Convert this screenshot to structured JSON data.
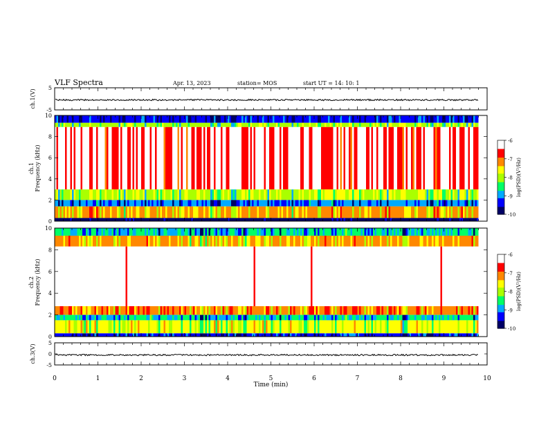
{
  "header": {
    "title": "VLF Spectra",
    "date": "Apr. 13, 2023",
    "station": "station= MOS",
    "start": "start  UT =   14: 10: 1"
  },
  "chart_data": [
    {
      "type": "line",
      "name": "ch.1 waveform",
      "ylabel": "ch.1(V)",
      "ylim": [
        -5,
        5
      ],
      "yticks": [
        "5",
        "-5"
      ],
      "x": [
        0,
        9.8
      ],
      "level": -0.5
    },
    {
      "type": "heatmap",
      "name": "ch.1 spectrogram",
      "ylabel": "ch.1\nFrequency (kHz)",
      "ylim": [
        0,
        10
      ],
      "yticks": [
        "0",
        "2",
        "4",
        "6",
        "8",
        "10"
      ],
      "xlim": [
        0,
        9.8
      ],
      "bands": [
        {
          "from": 9.3,
          "to": 10,
          "level": -9.3
        },
        {
          "from": 8.9,
          "to": 9.3,
          "level": -7.9
        },
        {
          "from": 3.0,
          "to": 8.9,
          "level": -6.5
        },
        {
          "from": 2.0,
          "to": 3.0,
          "level": -7.8
        },
        {
          "from": 1.4,
          "to": 2.0,
          "level": -9.0
        },
        {
          "from": 0.3,
          "to": 1.4,
          "level": -7.2
        },
        {
          "from": 0.0,
          "to": 0.3,
          "level": -9.8
        }
      ],
      "colorbar": {
        "label": "log(PSD)(V²/Hz)",
        "range": [
          -10,
          -6
        ],
        "ticks": [
          "-6",
          "-7",
          "-8",
          "-9",
          "-10"
        ]
      }
    },
    {
      "type": "heatmap",
      "name": "ch.2 spectrogram",
      "ylabel": "ch.2\nFrequency (kHz)",
      "ylim": [
        0,
        10
      ],
      "yticks": [
        "0",
        "2",
        "4",
        "6",
        "8",
        "10"
      ],
      "xlim": [
        0,
        9.8
      ],
      "bands": [
        {
          "from": 9.3,
          "to": 10,
          "level": -8.6
        },
        {
          "from": 8.3,
          "to": 9.3,
          "level": -7.2
        },
        {
          "from": 2.8,
          "to": 8.3,
          "level": -6.0
        },
        {
          "from": 2.0,
          "to": 2.8,
          "level": -7.0
        },
        {
          "from": 1.5,
          "to": 2.0,
          "level": -8.6
        },
        {
          "from": 0.3,
          "to": 1.5,
          "level": -7.6
        },
        {
          "from": 0.0,
          "to": 0.3,
          "level": -9.3
        }
      ],
      "colorbar": {
        "label": "log(PSD)(V²/Hz)",
        "range": [
          -10,
          -6
        ],
        "ticks": [
          "-6",
          "-7",
          "-8",
          "-9",
          "-10"
        ]
      }
    },
    {
      "type": "line",
      "name": "ch.3 waveform",
      "ylabel": "ch.3(V)",
      "ylim": [
        -5,
        5
      ],
      "yticks": [
        "5",
        "0",
        "-5"
      ],
      "x": [
        0,
        9.8
      ],
      "level": -0.5
    }
  ],
  "xaxis": {
    "label": "Time  (min)",
    "xlim": [
      0,
      10
    ],
    "ticks": [
      "0",
      "1",
      "2",
      "3",
      "4",
      "5",
      "6",
      "7",
      "8",
      "9",
      "10"
    ]
  },
  "colormap": [
    "#000066",
    "#0000ff",
    "#00aaff",
    "#00ff66",
    "#aaff00",
    "#ffff00",
    "#ff8800",
    "#ff0000",
    "#ffffff"
  ]
}
